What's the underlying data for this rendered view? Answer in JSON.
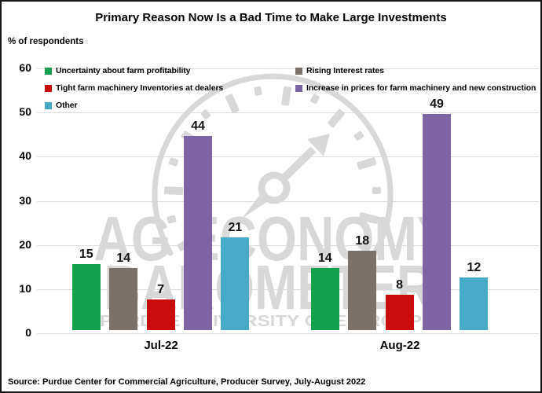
{
  "chart_data": {
    "type": "bar",
    "title": "Primary Reason Now Is a Bad Time to Make Large Investments",
    "ylabel": "% of respondents",
    "categories": [
      "Jul-22",
      "Aug-22"
    ],
    "series": [
      {
        "name": "Uncertainty about farm profitability",
        "color": "#13A14E",
        "values": [
          15,
          14
        ]
      },
      {
        "name": "Rising Interest rates",
        "color": "#7B7168",
        "values": [
          14,
          18
        ]
      },
      {
        "name": "Tight farm machinery Inventories at dealers",
        "color": "#C90C0C",
        "values": [
          7,
          8
        ]
      },
      {
        "name": "Increase in prices for farm machinery and new construction",
        "color": "#7D64A4",
        "values": [
          44,
          49
        ]
      },
      {
        "name": "Other",
        "color": "#47AAC7",
        "values": [
          21,
          12
        ]
      }
    ],
    "ylim": [
      0,
      60
    ],
    "yticks": [
      0,
      10,
      20,
      30,
      40,
      50,
      60
    ],
    "grid": true,
    "legend_position": "top-inside-two-columns"
  },
  "watermark": {
    "line1": "AG ECONOMY",
    "line2": "BAROMETER",
    "line3": "PURDUE UNIVERSITY   CME GROUP"
  },
  "footer": {
    "source": "Source: Purdue Center for Commercial Agriculture, Producer Survey, July-August 2022"
  }
}
